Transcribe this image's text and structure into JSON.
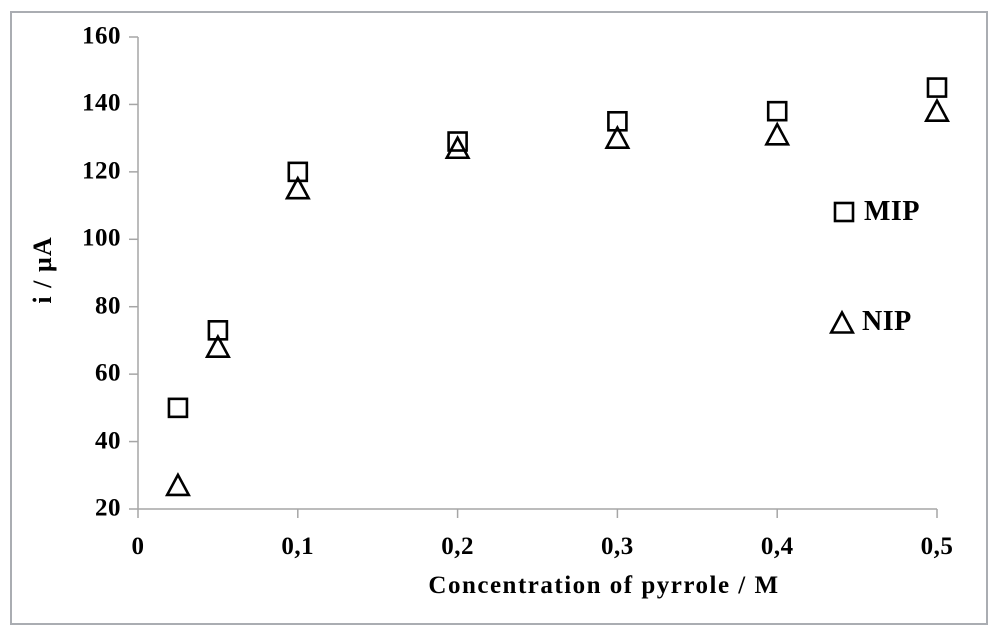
{
  "chart_data": {
    "type": "scatter",
    "title": "",
    "x": [
      0.025,
      0.05,
      0.1,
      0.2,
      0.3,
      0.4,
      0.5
    ],
    "series": [
      {
        "name": "MIP",
        "marker": "square",
        "values": [
          50,
          73,
          120,
          129,
          135,
          138,
          145
        ]
      },
      {
        "name": "NIP",
        "marker": "triangle",
        "values": [
          27,
          68,
          115,
          127,
          130,
          131,
          138
        ]
      }
    ],
    "xlabel": "Concentration of pyrrole / M",
    "ylabel": "i / µA",
    "xlim": [
      0,
      0.5
    ],
    "ylim": [
      20,
      160
    ],
    "x_ticks": [
      0,
      0.1,
      0.2,
      0.3,
      0.4,
      0.5
    ],
    "x_tick_labels": [
      "0",
      "0,1",
      "0,2",
      "0,3",
      "0,4",
      "0,5"
    ],
    "y_ticks": [
      20,
      40,
      60,
      80,
      100,
      120,
      140,
      160
    ],
    "y_tick_labels": [
      "20",
      "40",
      "60",
      "80",
      "100",
      "120",
      "140",
      "160"
    ],
    "grid": false,
    "legend_position": "right-inside",
    "marker_color": "#000000",
    "marker_fill": "#ffffff",
    "axis_color": "#a6a6a6",
    "frame_color": "#aaadb2",
    "background_color": "#ffffff"
  }
}
